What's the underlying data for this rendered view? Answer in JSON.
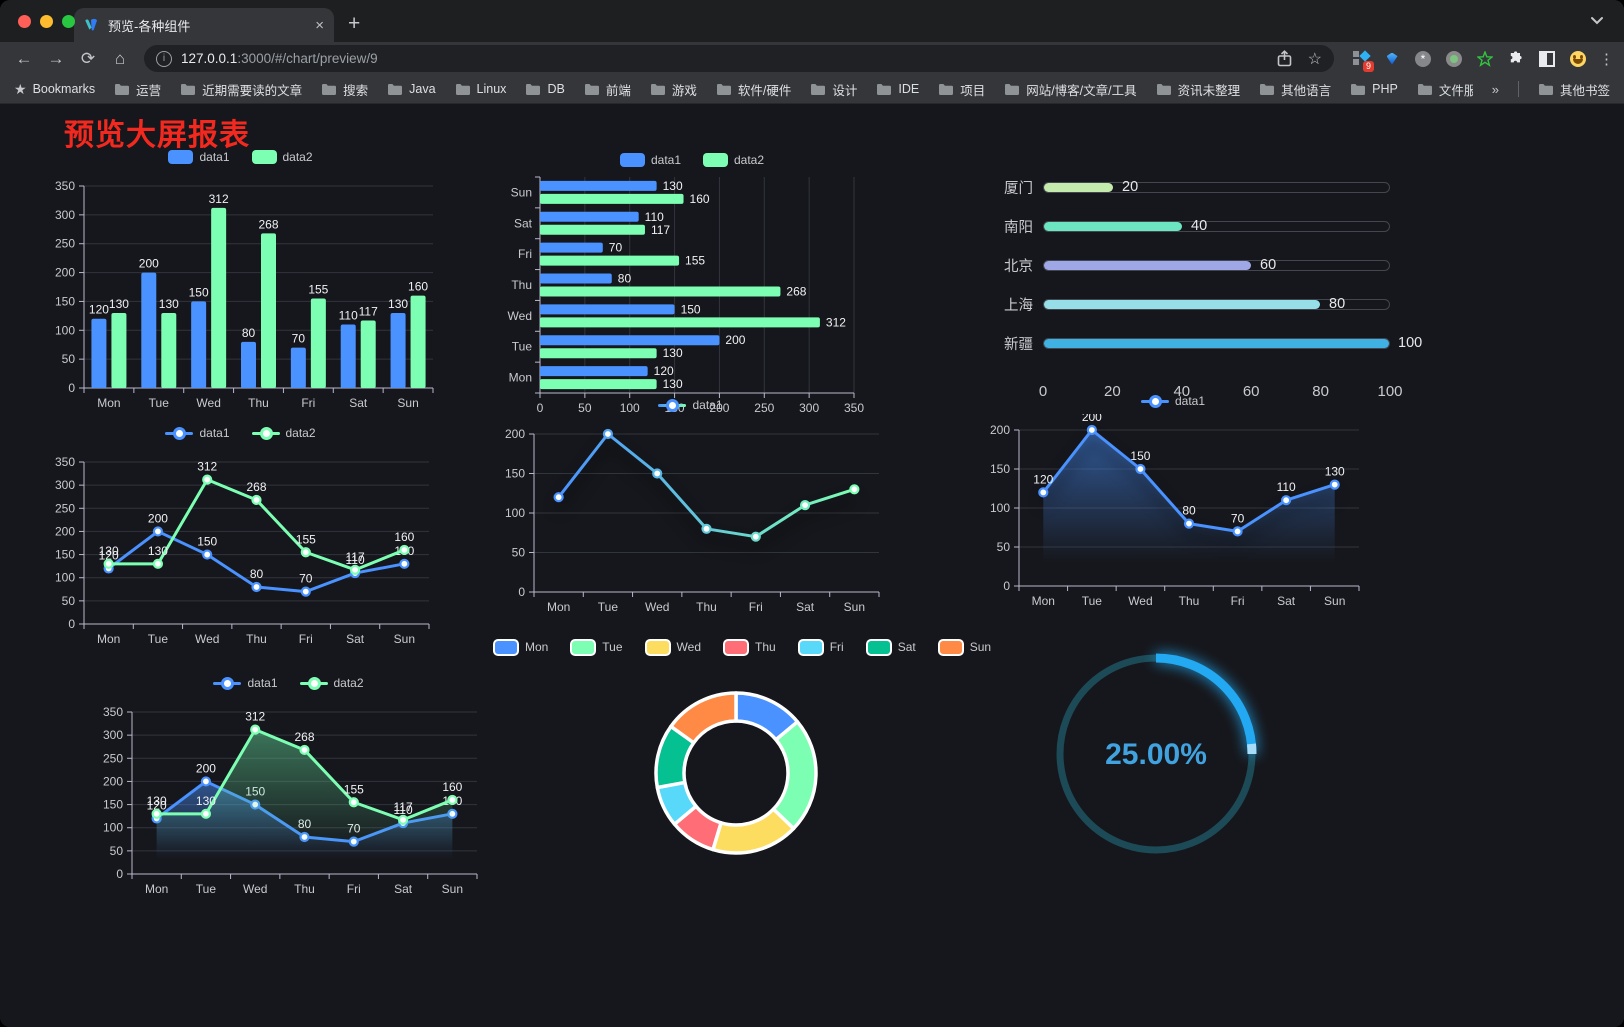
{
  "browser": {
    "tab_title": "预览-各种组件",
    "close_glyph": "×",
    "newtab_glyph": "+",
    "back_glyph": "←",
    "forward_glyph": "→",
    "reload_glyph": "⟳",
    "home_glyph": "⌂",
    "info_glyph": "i",
    "url_host": "127.0.0.1",
    "url_rest": ":3000/#/chart/preview/9",
    "star_glyph": "☆",
    "menu_glyph": "⋮",
    "ext_badge": "9",
    "bookmarks_star": "★",
    "bookmarks_label": "Bookmarks",
    "bookmarks": [
      "运营",
      "近期需要读的文章",
      "搜索",
      "Java",
      "Linux",
      "DB",
      "前端",
      "游戏",
      "软件/硬件",
      "设计",
      "IDE",
      "项目",
      "网站/博客/文章/工具",
      "资讯未整理",
      "其他语言",
      "PHP",
      "文件服务器"
    ],
    "overflow_glyph": "»",
    "other_bookmarks": "其他书签"
  },
  "page": {
    "title": "预览大屏报表",
    "title_color": "#f3291f"
  },
  "palette": {
    "blue": "#4992ff",
    "green": "#7cffb2",
    "yellow": "#fddd60",
    "red": "#ff6e76",
    "lightblue": "#58d9f9",
    "teal": "#05c091",
    "orange": "#ff8a45"
  },
  "chart_data": [
    {
      "id": "bar-vertical",
      "type": "bar",
      "legend_icon": "rect",
      "categories": [
        "Mon",
        "Tue",
        "Wed",
        "Thu",
        "Fri",
        "Sat",
        "Sun"
      ],
      "series": [
        {
          "name": "data1",
          "color": "#4992ff",
          "values": [
            120,
            200,
            150,
            80,
            70,
            110,
            130
          ],
          "labels": true
        },
        {
          "name": "data2",
          "color": "#7cffb2",
          "values": [
            130,
            130,
            312,
            268,
            155,
            117,
            160
          ],
          "labels": true
        }
      ],
      "ylim": [
        0,
        350
      ],
      "ystep": 50,
      "yticks": [
        0,
        50,
        100,
        150,
        200,
        250,
        300,
        350
      ]
    },
    {
      "id": "bar-horizontal",
      "type": "bar-h",
      "legend_icon": "rect",
      "categories": [
        "Mon",
        "Tue",
        "Wed",
        "Thu",
        "Fri",
        "Sat",
        "Sun"
      ],
      "series": [
        {
          "name": "data1",
          "color": "#4992ff",
          "values": [
            120,
            200,
            150,
            80,
            70,
            110,
            130
          ],
          "labels": true
        },
        {
          "name": "data2",
          "color": "#7cffb2",
          "values": [
            130,
            130,
            312,
            268,
            155,
            117,
            160
          ],
          "labels": true
        }
      ],
      "xlim": [
        0,
        350
      ],
      "xstep": 50,
      "xticks": [
        0,
        50,
        100,
        150,
        200,
        250,
        300,
        350
      ]
    },
    {
      "id": "city-progress",
      "type": "progress",
      "items": [
        {
          "label": "厦门",
          "value": 20,
          "color": "#c4ebad"
        },
        {
          "label": "南阳",
          "value": 40,
          "color": "#6be6c1"
        },
        {
          "label": "北京",
          "value": 60,
          "color": "#a0a7e6"
        },
        {
          "label": "上海",
          "value": 80,
          "color": "#96dee8"
        },
        {
          "label": "新疆",
          "value": 100,
          "color": "#3fb1e3"
        }
      ],
      "xlim": [
        0,
        100
      ],
      "xticks": [
        0,
        20,
        40,
        60,
        80,
        100
      ]
    },
    {
      "id": "line-two-series",
      "type": "line",
      "legend_icon": "line",
      "categories": [
        "Mon",
        "Tue",
        "Wed",
        "Thu",
        "Fri",
        "Sat",
        "Sun"
      ],
      "series": [
        {
          "name": "data1",
          "color": "#4992ff",
          "values": [
            120,
            200,
            150,
            80,
            70,
            110,
            130
          ],
          "labels": true
        },
        {
          "name": "data2",
          "color": "#7cffb2",
          "values": [
            130,
            130,
            312,
            268,
            155,
            117,
            160
          ],
          "labels": true
        }
      ],
      "ylim": [
        0,
        350
      ],
      "ystep": 50,
      "yticks": [
        0,
        50,
        100,
        150,
        200,
        250,
        300,
        350
      ]
    },
    {
      "id": "line-gradient",
      "type": "line",
      "legend_icon": "line",
      "categories": [
        "Mon",
        "Tue",
        "Wed",
        "Thu",
        "Fri",
        "Sat",
        "Sun"
      ],
      "series": [
        {
          "name": "data1",
          "gradient": [
            "#4992ff",
            "#7cffb2"
          ],
          "values": [
            120,
            200,
            150,
            80,
            70,
            110,
            130
          ],
          "shadow": true
        }
      ],
      "ylim": [
        0,
        200
      ],
      "ystep": 50,
      "yticks": [
        0,
        50,
        100,
        150,
        200
      ]
    },
    {
      "id": "line-area",
      "type": "line",
      "legend_icon": "line",
      "categories": [
        "Mon",
        "Tue",
        "Wed",
        "Thu",
        "Fri",
        "Sat",
        "Sun"
      ],
      "series": [
        {
          "name": "data1",
          "color": "#4992ff",
          "values": [
            120,
            200,
            150,
            80,
            70,
            110,
            130
          ],
          "labels": true,
          "shadow": true,
          "area": [
            "rgba(73,146,255,0.55)",
            "rgba(73,146,255,0)"
          ]
        }
      ],
      "ylim": [
        0,
        200
      ],
      "ystep": 50,
      "yticks": [
        0,
        50,
        100,
        150,
        200
      ]
    },
    {
      "id": "line-area-two",
      "type": "line",
      "legend_icon": "line",
      "categories": [
        "Mon",
        "Tue",
        "Wed",
        "Thu",
        "Fri",
        "Sat",
        "Sun"
      ],
      "series": [
        {
          "name": "data1",
          "color": "#4992ff",
          "values": [
            120,
            200,
            150,
            80,
            70,
            110,
            130
          ],
          "labels": true,
          "area": [
            "rgba(73,146,255,0.5)",
            "rgba(73,146,255,0)"
          ]
        },
        {
          "name": "data2",
          "color": "#7cffb2",
          "values": [
            130,
            130,
            312,
            268,
            155,
            117,
            160
          ],
          "labels": true,
          "area": [
            "rgba(96,210,150,0.5)",
            "rgba(96,210,150,0)"
          ]
        }
      ],
      "ylim": [
        0,
        350
      ],
      "ystep": 50,
      "yticks": [
        0,
        50,
        100,
        150,
        200,
        250,
        300,
        350
      ]
    },
    {
      "id": "donut",
      "type": "pie",
      "categories": [
        "Mon",
        "Tue",
        "Wed",
        "Thu",
        "Fri",
        "Sat",
        "Sun"
      ],
      "values": [
        120,
        200,
        150,
        80,
        70,
        110,
        130
      ],
      "colors": [
        "#4992ff",
        "#7cffb2",
        "#fddd60",
        "#ff6e76",
        "#58d9f9",
        "#05c091",
        "#ff8a45"
      ],
      "border_color": "#ffffff"
    },
    {
      "id": "gauge",
      "type": "gauge",
      "value": 25,
      "label": "25.00%",
      "track_color": "#1d4a57",
      "progress_color": "#22a9f2",
      "tip_color": "#a6dcf8",
      "text_color": "#41a2e0"
    }
  ]
}
